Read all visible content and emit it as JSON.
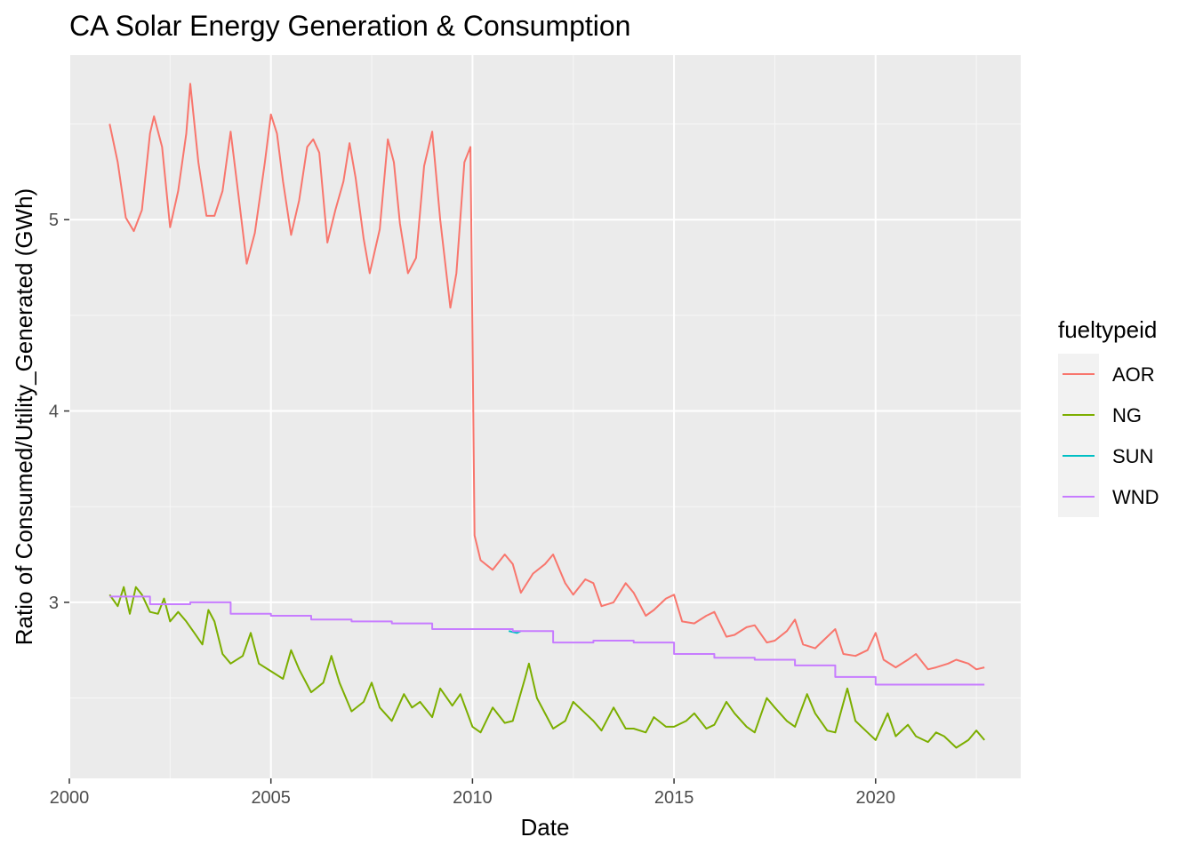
{
  "chart_data": {
    "type": "line",
    "title": "CA Solar Energy Generation & Consumption",
    "xlabel": "Date",
    "ylabel": "Ratio of Consumed/Utility_Generated (GWh)",
    "xlim": [
      2000.0,
      2023.6
    ],
    "ylim": [
      2.08,
      5.86
    ],
    "x_ticks": [
      2000,
      2005,
      2010,
      2015,
      2020
    ],
    "y_ticks": [
      3,
      4,
      5
    ],
    "grid": true,
    "legend_title": "fueltypeid",
    "legend_position": "right",
    "series": [
      {
        "name": "AOR",
        "color": "#F8766D",
        "points": [
          [
            2001.0,
            5.5
          ],
          [
            2001.2,
            5.3
          ],
          [
            2001.4,
            5.01
          ],
          [
            2001.6,
            4.94
          ],
          [
            2001.8,
            5.05
          ],
          [
            2002.0,
            5.45
          ],
          [
            2002.1,
            5.54
          ],
          [
            2002.3,
            5.38
          ],
          [
            2002.5,
            4.96
          ],
          [
            2002.7,
            5.15
          ],
          [
            2002.9,
            5.45
          ],
          [
            2003.0,
            5.71
          ],
          [
            2003.2,
            5.3
          ],
          [
            2003.4,
            5.02
          ],
          [
            2003.6,
            5.02
          ],
          [
            2003.8,
            5.15
          ],
          [
            2004.0,
            5.46
          ],
          [
            2004.2,
            5.12
          ],
          [
            2004.4,
            4.77
          ],
          [
            2004.6,
            4.93
          ],
          [
            2004.85,
            5.3
          ],
          [
            2005.0,
            5.55
          ],
          [
            2005.15,
            5.45
          ],
          [
            2005.3,
            5.2
          ],
          [
            2005.5,
            4.92
          ],
          [
            2005.7,
            5.1
          ],
          [
            2005.9,
            5.38
          ],
          [
            2006.05,
            5.42
          ],
          [
            2006.2,
            5.35
          ],
          [
            2006.4,
            4.88
          ],
          [
            2006.6,
            5.05
          ],
          [
            2006.8,
            5.2
          ],
          [
            2006.95,
            5.4
          ],
          [
            2007.1,
            5.22
          ],
          [
            2007.3,
            4.9
          ],
          [
            2007.45,
            4.72
          ],
          [
            2007.7,
            4.95
          ],
          [
            2007.9,
            5.42
          ],
          [
            2008.05,
            5.3
          ],
          [
            2008.2,
            4.98
          ],
          [
            2008.4,
            4.72
          ],
          [
            2008.6,
            4.8
          ],
          [
            2008.8,
            5.28
          ],
          [
            2009.0,
            5.46
          ],
          [
            2009.2,
            5.0
          ],
          [
            2009.45,
            4.54
          ],
          [
            2009.6,
            4.72
          ],
          [
            2009.8,
            5.3
          ],
          [
            2009.95,
            5.38
          ],
          [
            2010.0,
            4.4
          ],
          [
            2010.05,
            3.35
          ],
          [
            2010.2,
            3.22
          ],
          [
            2010.5,
            3.17
          ],
          [
            2010.8,
            3.25
          ],
          [
            2011.0,
            3.2
          ],
          [
            2011.2,
            3.05
          ],
          [
            2011.5,
            3.15
          ],
          [
            2011.8,
            3.2
          ],
          [
            2012.0,
            3.25
          ],
          [
            2012.3,
            3.1
          ],
          [
            2012.5,
            3.04
          ],
          [
            2012.8,
            3.12
          ],
          [
            2013.0,
            3.1
          ],
          [
            2013.2,
            2.98
          ],
          [
            2013.5,
            3.0
          ],
          [
            2013.8,
            3.1
          ],
          [
            2014.0,
            3.05
          ],
          [
            2014.3,
            2.93
          ],
          [
            2014.5,
            2.96
          ],
          [
            2014.8,
            3.02
          ],
          [
            2015.0,
            3.04
          ],
          [
            2015.2,
            2.9
          ],
          [
            2015.5,
            2.89
          ],
          [
            2015.8,
            2.93
          ],
          [
            2016.0,
            2.95
          ],
          [
            2016.3,
            2.82
          ],
          [
            2016.5,
            2.83
          ],
          [
            2016.8,
            2.87
          ],
          [
            2017.0,
            2.88
          ],
          [
            2017.3,
            2.79
          ],
          [
            2017.5,
            2.8
          ],
          [
            2017.8,
            2.85
          ],
          [
            2018.0,
            2.91
          ],
          [
            2018.2,
            2.78
          ],
          [
            2018.5,
            2.76
          ],
          [
            2018.8,
            2.82
          ],
          [
            2019.0,
            2.86
          ],
          [
            2019.2,
            2.73
          ],
          [
            2019.5,
            2.72
          ],
          [
            2019.8,
            2.75
          ],
          [
            2020.0,
            2.84
          ],
          [
            2020.2,
            2.7
          ],
          [
            2020.5,
            2.66
          ],
          [
            2020.8,
            2.7
          ],
          [
            2021.0,
            2.73
          ],
          [
            2021.3,
            2.65
          ],
          [
            2021.5,
            2.66
          ],
          [
            2021.8,
            2.68
          ],
          [
            2022.0,
            2.7
          ],
          [
            2022.3,
            2.68
          ],
          [
            2022.5,
            2.65
          ],
          [
            2022.7,
            2.66
          ]
        ]
      },
      {
        "name": "NG",
        "color": "#7CAE00",
        "points": [
          [
            2001.0,
            3.04
          ],
          [
            2001.2,
            2.98
          ],
          [
            2001.35,
            3.08
          ],
          [
            2001.5,
            2.94
          ],
          [
            2001.65,
            3.08
          ],
          [
            2001.8,
            3.04
          ],
          [
            2002.0,
            2.95
          ],
          [
            2002.2,
            2.94
          ],
          [
            2002.35,
            3.02
          ],
          [
            2002.5,
            2.9
          ],
          [
            2002.7,
            2.95
          ],
          [
            2002.9,
            2.9
          ],
          [
            2003.1,
            2.84
          ],
          [
            2003.3,
            2.78
          ],
          [
            2003.45,
            2.96
          ],
          [
            2003.6,
            2.9
          ],
          [
            2003.8,
            2.73
          ],
          [
            2004.0,
            2.68
          ],
          [
            2004.3,
            2.72
          ],
          [
            2004.5,
            2.84
          ],
          [
            2004.7,
            2.68
          ],
          [
            2005.0,
            2.64
          ],
          [
            2005.3,
            2.6
          ],
          [
            2005.5,
            2.75
          ],
          [
            2005.7,
            2.65
          ],
          [
            2006.0,
            2.53
          ],
          [
            2006.3,
            2.58
          ],
          [
            2006.5,
            2.72
          ],
          [
            2006.7,
            2.58
          ],
          [
            2007.0,
            2.43
          ],
          [
            2007.3,
            2.48
          ],
          [
            2007.5,
            2.58
          ],
          [
            2007.7,
            2.45
          ],
          [
            2008.0,
            2.38
          ],
          [
            2008.3,
            2.52
          ],
          [
            2008.5,
            2.45
          ],
          [
            2008.7,
            2.48
          ],
          [
            2009.0,
            2.4
          ],
          [
            2009.2,
            2.55
          ],
          [
            2009.5,
            2.46
          ],
          [
            2009.7,
            2.52
          ],
          [
            2010.0,
            2.35
          ],
          [
            2010.2,
            2.32
          ],
          [
            2010.5,
            2.45
          ],
          [
            2010.8,
            2.37
          ],
          [
            2011.0,
            2.38
          ],
          [
            2011.3,
            2.6
          ],
          [
            2011.4,
            2.68
          ],
          [
            2011.6,
            2.5
          ],
          [
            2012.0,
            2.34
          ],
          [
            2012.3,
            2.38
          ],
          [
            2012.5,
            2.48
          ],
          [
            2012.8,
            2.42
          ],
          [
            2013.0,
            2.38
          ],
          [
            2013.2,
            2.33
          ],
          [
            2013.5,
            2.45
          ],
          [
            2013.8,
            2.34
          ],
          [
            2014.0,
            2.34
          ],
          [
            2014.3,
            2.32
          ],
          [
            2014.5,
            2.4
          ],
          [
            2014.8,
            2.35
          ],
          [
            2015.0,
            2.35
          ],
          [
            2015.3,
            2.38
          ],
          [
            2015.5,
            2.42
          ],
          [
            2015.8,
            2.34
          ],
          [
            2016.0,
            2.36
          ],
          [
            2016.3,
            2.48
          ],
          [
            2016.5,
            2.42
          ],
          [
            2016.8,
            2.35
          ],
          [
            2017.0,
            2.32
          ],
          [
            2017.3,
            2.5
          ],
          [
            2017.5,
            2.45
          ],
          [
            2017.8,
            2.38
          ],
          [
            2018.0,
            2.35
          ],
          [
            2018.3,
            2.52
          ],
          [
            2018.5,
            2.42
          ],
          [
            2018.8,
            2.33
          ],
          [
            2019.0,
            2.32
          ],
          [
            2019.3,
            2.55
          ],
          [
            2019.5,
            2.38
          ],
          [
            2019.8,
            2.32
          ],
          [
            2020.0,
            2.28
          ],
          [
            2020.3,
            2.42
          ],
          [
            2020.5,
            2.3
          ],
          [
            2020.8,
            2.36
          ],
          [
            2021.0,
            2.3
          ],
          [
            2021.3,
            2.27
          ],
          [
            2021.5,
            2.32
          ],
          [
            2021.7,
            2.3
          ],
          [
            2022.0,
            2.24
          ],
          [
            2022.3,
            2.28
          ],
          [
            2022.5,
            2.33
          ],
          [
            2022.7,
            2.28
          ]
        ]
      },
      {
        "name": "SUN",
        "color": "#00BFC4",
        "points": [
          [
            2010.9,
            2.85
          ],
          [
            2011.1,
            2.84
          ],
          [
            2011.2,
            2.85
          ]
        ]
      },
      {
        "name": "WND",
        "color": "#C77CFF",
        "points": [
          [
            2001.0,
            3.03
          ],
          [
            2002.0,
            3.03
          ],
          [
            2002.0,
            2.99
          ],
          [
            2003.0,
            2.99
          ],
          [
            2003.0,
            3.0
          ],
          [
            2004.0,
            3.0
          ],
          [
            2004.0,
            2.94
          ],
          [
            2005.0,
            2.94
          ],
          [
            2005.0,
            2.93
          ],
          [
            2006.0,
            2.93
          ],
          [
            2006.0,
            2.91
          ],
          [
            2007.0,
            2.91
          ],
          [
            2007.0,
            2.9
          ],
          [
            2008.0,
            2.9
          ],
          [
            2008.0,
            2.89
          ],
          [
            2009.0,
            2.89
          ],
          [
            2009.0,
            2.86
          ],
          [
            2010.0,
            2.86
          ],
          [
            2010.0,
            2.86
          ],
          [
            2011.0,
            2.86
          ],
          [
            2011.0,
            2.85
          ],
          [
            2012.0,
            2.85
          ],
          [
            2012.0,
            2.79
          ],
          [
            2013.0,
            2.79
          ],
          [
            2013.0,
            2.8
          ],
          [
            2014.0,
            2.8
          ],
          [
            2014.0,
            2.79
          ],
          [
            2015.0,
            2.79
          ],
          [
            2015.0,
            2.73
          ],
          [
            2016.0,
            2.73
          ],
          [
            2016.0,
            2.71
          ],
          [
            2017.0,
            2.71
          ],
          [
            2017.0,
            2.7
          ],
          [
            2018.0,
            2.7
          ],
          [
            2018.0,
            2.67
          ],
          [
            2019.0,
            2.67
          ],
          [
            2019.0,
            2.61
          ],
          [
            2020.0,
            2.61
          ],
          [
            2020.0,
            2.57
          ],
          [
            2022.7,
            2.57
          ]
        ]
      }
    ]
  }
}
